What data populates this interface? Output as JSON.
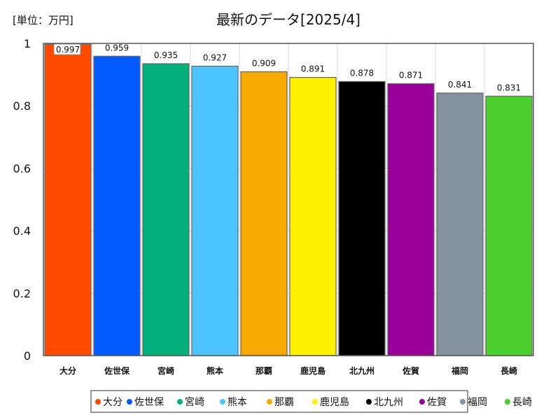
{
  "chart_data": {
    "type": "bar",
    "title": "最新のデータ[2025/4]",
    "unit_label": "[単位：万円]",
    "categories": [
      "大分",
      "佐世保",
      "宮崎",
      "熊本",
      "那覇",
      "鹿児島",
      "北九州",
      "佐賀",
      "福岡",
      "長崎"
    ],
    "values": [
      0.997,
      0.959,
      0.935,
      0.927,
      0.909,
      0.891,
      0.878,
      0.871,
      0.841,
      0.831
    ],
    "value_labels": [
      "0.997",
      "0.959",
      "0.935",
      "0.927",
      "0.909",
      "0.891",
      "0.878",
      "0.871",
      "0.841",
      "0.831"
    ],
    "colors": [
      "#ff4b00",
      "#005aff",
      "#03af7a",
      "#4dc4ff",
      "#f6aa00",
      "#fff100",
      "#000000",
      "#990099",
      "#84919e",
      "#4dce2f"
    ],
    "ylim": [
      0,
      1
    ],
    "yticks": [
      0,
      0.2,
      0.4,
      0.6,
      0.8,
      1
    ],
    "ytick_labels": [
      "0",
      "0.2",
      "0.4",
      "0.6",
      "0.8",
      "1"
    ],
    "grid": true,
    "legend_position": "bottom",
    "legend_items": [
      "大分",
      "佐世保",
      "宮崎",
      "熊本",
      "那覇",
      "鹿児島",
      "北九州",
      "佐賀",
      "福岡",
      "長崎"
    ]
  }
}
